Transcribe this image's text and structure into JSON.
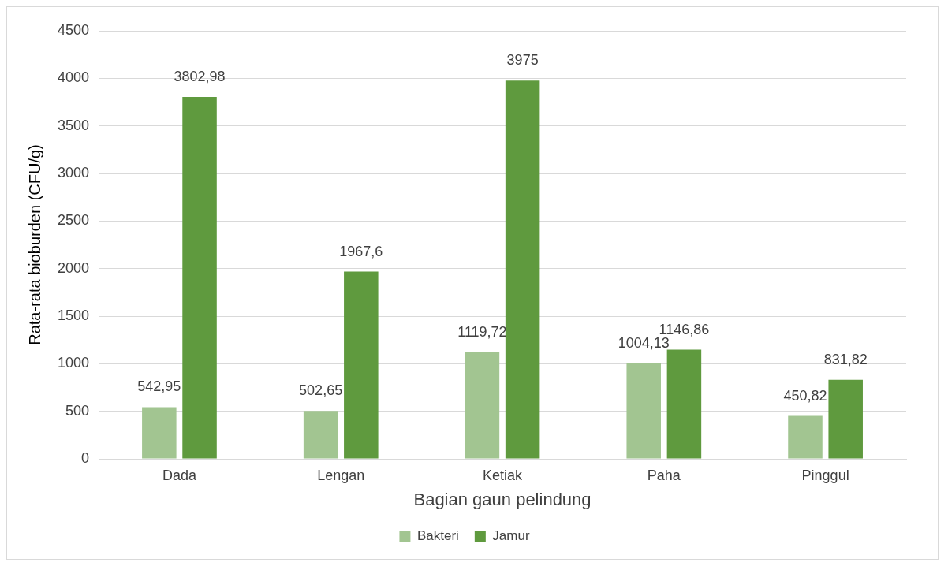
{
  "chart_data": {
    "type": "bar",
    "xlabel": "Bagian gaun pelindung",
    "ylabel": "Rata-rata bioburden (CFU/g)",
    "categories": [
      "Dada",
      "Lengan",
      "Ketiak",
      "Paha",
      "Pinggul"
    ],
    "series": [
      {
        "name": "Bakteri",
        "color": "#a2c591",
        "values": [
          542.95,
          502.65,
          1119.72,
          1004.13,
          450.82
        ],
        "value_labels": [
          "542,95",
          "502,65",
          "1119,72",
          "1004,13",
          "450,82"
        ]
      },
      {
        "name": "Jamur",
        "color": "#5f9a3e",
        "values": [
          3802.98,
          1967.6,
          3975,
          1146.86,
          831.82
        ],
        "value_labels": [
          "3802,98",
          "1967,6",
          "3975",
          "1146,86",
          "831,82"
        ]
      }
    ],
    "ylim": [
      0,
      4500
    ],
    "yticks": [
      0,
      500,
      1000,
      1500,
      2000,
      2500,
      3000,
      3500,
      4000,
      4500
    ],
    "grid": "y",
    "legend": "bottom"
  }
}
